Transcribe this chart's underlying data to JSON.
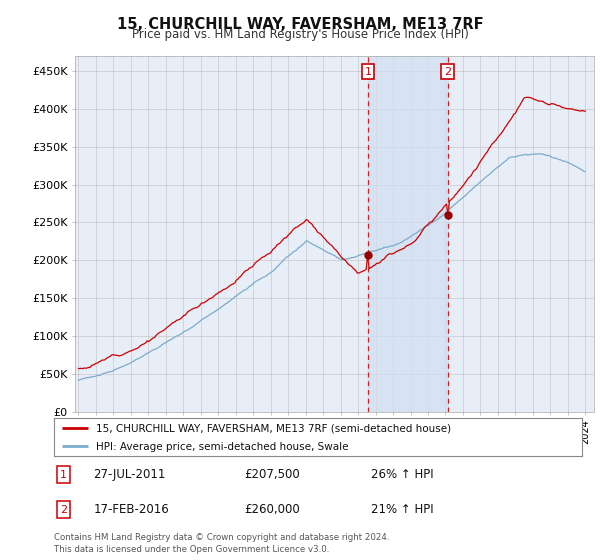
{
  "title": "15, CHURCHILL WAY, FAVERSHAM, ME13 7RF",
  "subtitle": "Price paid vs. HM Land Registry's House Price Index (HPI)",
  "ylim": [
    0,
    470000
  ],
  "yticks": [
    0,
    50000,
    100000,
    150000,
    200000,
    250000,
    300000,
    350000,
    400000,
    450000
  ],
  "ytick_labels": [
    "£0",
    "£50K",
    "£100K",
    "£150K",
    "£200K",
    "£250K",
    "£300K",
    "£350K",
    "£400K",
    "£450K"
  ],
  "background_color": "#ffffff",
  "plot_bg_color": "#e8eef8",
  "grid_color": "#c8c8c8",
  "shade_color": "#d0ddf0",
  "sale1_year": 2011.57,
  "sale1_price": 207500,
  "sale2_year": 2016.12,
  "sale2_price": 260000,
  "legend1_text": "15, CHURCHILL WAY, FAVERSHAM, ME13 7RF (semi-detached house)",
  "legend2_text": "HPI: Average price, semi-detached house, Swale",
  "footer": "Contains HM Land Registry data © Crown copyright and database right 2024.\nThis data is licensed under the Open Government Licence v3.0.",
  "red_line_color": "#cc0000",
  "blue_line_color": "#7aaccc",
  "sale_marker_color": "#990000",
  "vline_color": "#cc2222",
  "title_fontsize": 10.5,
  "subtitle_fontsize": 8.5
}
